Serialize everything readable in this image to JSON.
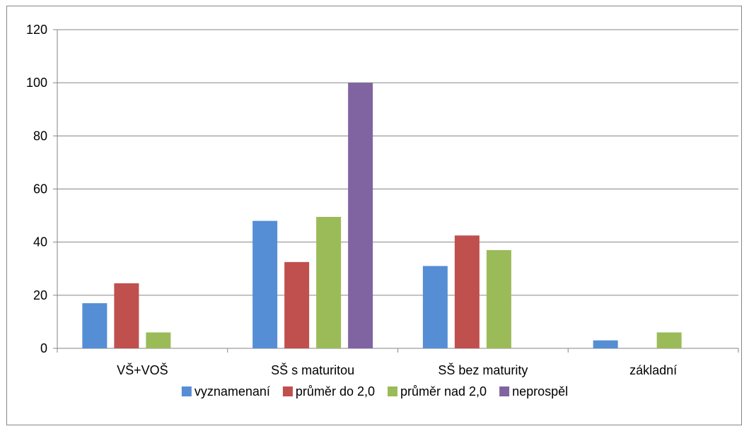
{
  "chart_data": {
    "type": "bar",
    "title": "",
    "xlabel": "",
    "ylabel": "",
    "categories": [
      "VŠ+VOŠ",
      "SŠ s maturitou",
      "SŠ bez maturity",
      "základní"
    ],
    "series": [
      {
        "name": "vyznamenaní",
        "color": "#558ED5",
        "values": [
          17,
          48,
          31,
          3
        ]
      },
      {
        "name": "průměr do 2,0",
        "color": "#C0504D",
        "values": [
          24.5,
          32.5,
          42.5,
          0
        ]
      },
      {
        "name": "průměr nad 2,0",
        "color": "#9BBB59",
        "values": [
          6,
          49.5,
          37,
          6
        ]
      },
      {
        "name": "neprospěl",
        "color": "#8064A2",
        "values": [
          0,
          100,
          0,
          0
        ]
      }
    ],
    "ylim": [
      0,
      120
    ],
    "yticks": [
      0,
      20,
      40,
      60,
      80,
      100,
      120
    ],
    "grid": true,
    "legend_position": "bottom"
  }
}
